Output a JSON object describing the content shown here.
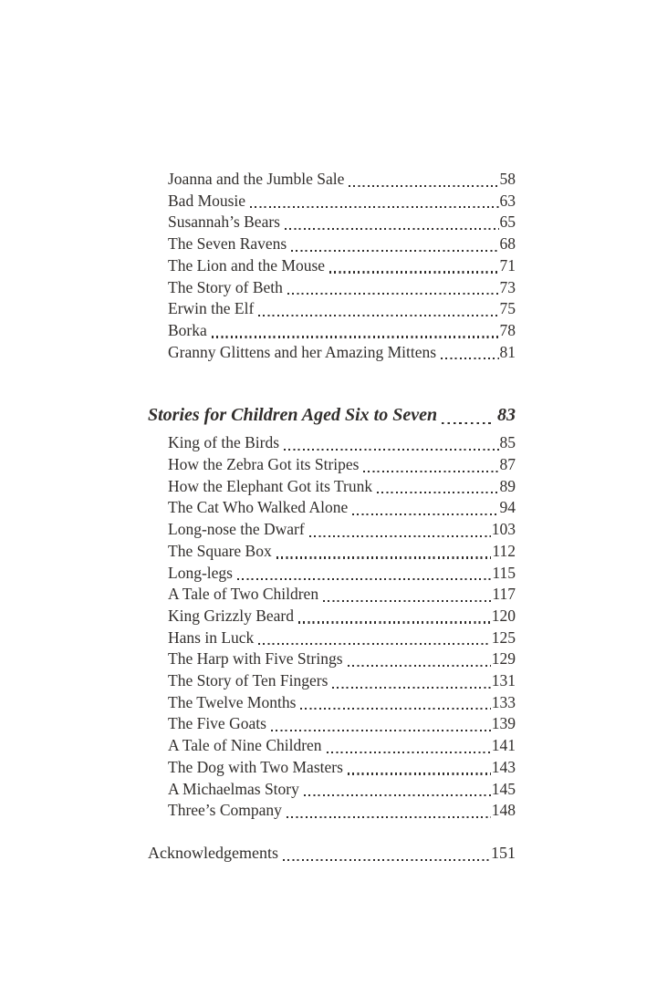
{
  "page": {
    "background": "#ffffff",
    "text_color": "#312e2c"
  },
  "toc": {
    "group1": [
      {
        "title": "Joanna and the Jumble Sale",
        "page": "58"
      },
      {
        "title": "Bad Mousie",
        "page": "63"
      },
      {
        "title": "Susannah’s Bears",
        "page": "65"
      },
      {
        "title": "The Seven Ravens",
        "page": "68"
      },
      {
        "title": "The Lion and the Mouse",
        "page": "71"
      },
      {
        "title": "The Story of Beth",
        "page": "73"
      },
      {
        "title": "Erwin the Elf",
        "page": "75"
      },
      {
        "title": "Borka",
        "page": "78"
      },
      {
        "title": "Granny Glittens and her Amazing Mittens",
        "page": "81"
      }
    ],
    "section": {
      "title": "Stories for Children Aged Six to Seven",
      "page": "83"
    },
    "group2": [
      {
        "title": "King of the Birds",
        "page": "85"
      },
      {
        "title": "How the Zebra Got its Stripes",
        "page": "87"
      },
      {
        "title": "How the Elephant Got its Trunk",
        "page": "89"
      },
      {
        "title": "The Cat Who Walked Alone",
        "page": "94"
      },
      {
        "title": "Long-nose the Dwarf",
        "page": "103"
      },
      {
        "title": "The Square Box",
        "page": "112"
      },
      {
        "title": "Long-legs",
        "page": "115"
      },
      {
        "title": "A Tale of Two Children",
        "page": "117"
      },
      {
        "title": "King Grizzly Beard",
        "page": "120"
      },
      {
        "title": "Hans in Luck",
        "page": "125"
      },
      {
        "title": "The Harp with Five Strings",
        "page": "129"
      },
      {
        "title": "The Story of Ten Fingers",
        "page": "131"
      },
      {
        "title": "The Twelve Months",
        "page": "133"
      },
      {
        "title": "The Five Goats",
        "page": "139"
      },
      {
        "title": "A Tale of Nine Children",
        "page": "141"
      },
      {
        "title": "The Dog with Two Masters",
        "page": "143"
      },
      {
        "title": "A Michaelmas Story",
        "page": "145"
      },
      {
        "title": "Three’s Company",
        "page": "148"
      }
    ],
    "footer": {
      "title": "Acknowledgements",
      "page": "151"
    }
  }
}
